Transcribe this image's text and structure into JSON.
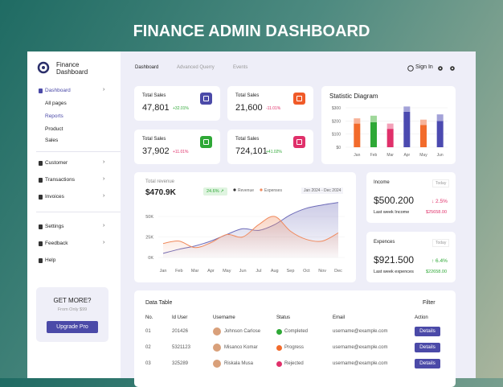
{
  "title": "FINANCE ADMIN DASHBOARD",
  "brand": {
    "line1": "Finance",
    "line2": "Dashboard"
  },
  "sidebar": {
    "menu": [
      "Dashboard",
      "All pages",
      "Reports",
      "Product",
      "Sales",
      "Customer",
      "Transactions",
      "Invoices",
      "Settings",
      "Feedback",
      "Help"
    ],
    "promo": {
      "title": "GET MORE?",
      "subtitle": "From Only $99",
      "button": "Upgrade Pro"
    }
  },
  "topbar": {
    "tabs": [
      "Dashboard",
      "Advanced Querry",
      "Events"
    ],
    "sign_in": "Sign In"
  },
  "cards": [
    {
      "label": "Total Sales",
      "value": "47,801",
      "change": "+32.01%"
    },
    {
      "label": "Total Sales",
      "value": "21,600",
      "change": "-11.01%"
    },
    {
      "label": "Total Sales",
      "value": "37,902",
      "change": "+11.01%"
    },
    {
      "label": "Total Sales",
      "value": "724,101",
      "change": "+41.02%"
    }
  ],
  "statistic": {
    "title": "Statistic Diagram",
    "categories": [
      "Jan",
      "Feb",
      "Mar",
      "Apr",
      "May",
      "Jun"
    ],
    "ylim": [
      0,
      300
    ],
    "yticks": [
      {
        "value": 0,
        "label": "$0"
      },
      {
        "value": 100,
        "label": "$100"
      },
      {
        "value": 200,
        "label": "$200"
      },
      {
        "value": 300,
        "label": "$300"
      }
    ],
    "series": [
      {
        "colors": [
          "#f26b2c",
          "#2ea836",
          "#e0306a",
          "#4b4ab0",
          "#f26b2c",
          "#4b4ab0"
        ],
        "values": [
          180,
          190,
          140,
          270,
          170,
          200
        ]
      },
      {
        "colors": [
          "#f7b39a",
          "#9fd89a",
          "#f3a0b8",
          "#a3a2d8",
          "#f7b39a",
          "#a3a2d8"
        ],
        "values": [
          40,
          50,
          40,
          40,
          40,
          50
        ]
      }
    ]
  },
  "revenue": {
    "title": "Total revenue",
    "amount": "$470.9K",
    "badge": "24.6% ↗",
    "range": "Jan 2024 - Dec 2024",
    "categories": [
      "Jan",
      "Feb",
      "Mar",
      "Apr",
      "May",
      "Jun",
      "Jul",
      "Aug",
      "Sep",
      "Oct",
      "Nov",
      "Dec"
    ],
    "ylim": [
      0,
      70
    ],
    "yticks": [
      {
        "value": 0,
        "label": "0K"
      },
      {
        "value": 25,
        "label": "25K"
      },
      {
        "value": 50,
        "label": "50K"
      }
    ],
    "series": [
      {
        "name": "Revenue",
        "color": "#6d6bb8",
        "values": [
          5,
          10,
          14,
          20,
          28,
          35,
          33,
          40,
          52,
          60,
          64,
          67
        ]
      },
      {
        "name": "Expenses",
        "color": "#f08a5d",
        "values": [
          17,
          20,
          12,
          18,
          28,
          25,
          40,
          50,
          32,
          22,
          20,
          30
        ]
      }
    ]
  },
  "income": {
    "label": "Income",
    "tag": "Today",
    "value": "$500.200",
    "change": "↓ 2.5%",
    "note": "Last week Income",
    "note_value": "$25658.00"
  },
  "expenses": {
    "label": "Expences",
    "tag": "Today",
    "value": "$921.500",
    "change": "↑ 6.4%",
    "note": "Last week expences",
    "note_value": "$22658.00"
  },
  "table": {
    "title": "Data Table",
    "filter": "Filter",
    "headers": [
      "No.",
      "Id User",
      "Username",
      "Status",
      "Email",
      "Action"
    ],
    "rows": [
      [
        "01",
        "201426",
        "Johnson Carlose",
        "Completed",
        "username@example.com",
        "Details"
      ],
      [
        "02",
        "5321123",
        "Misanco Komar",
        "Progress",
        "username@example.com",
        "Details"
      ],
      [
        "03",
        "325289",
        "Riskala Musa",
        "Rejected",
        "username@example.com",
        "Details"
      ]
    ]
  }
}
